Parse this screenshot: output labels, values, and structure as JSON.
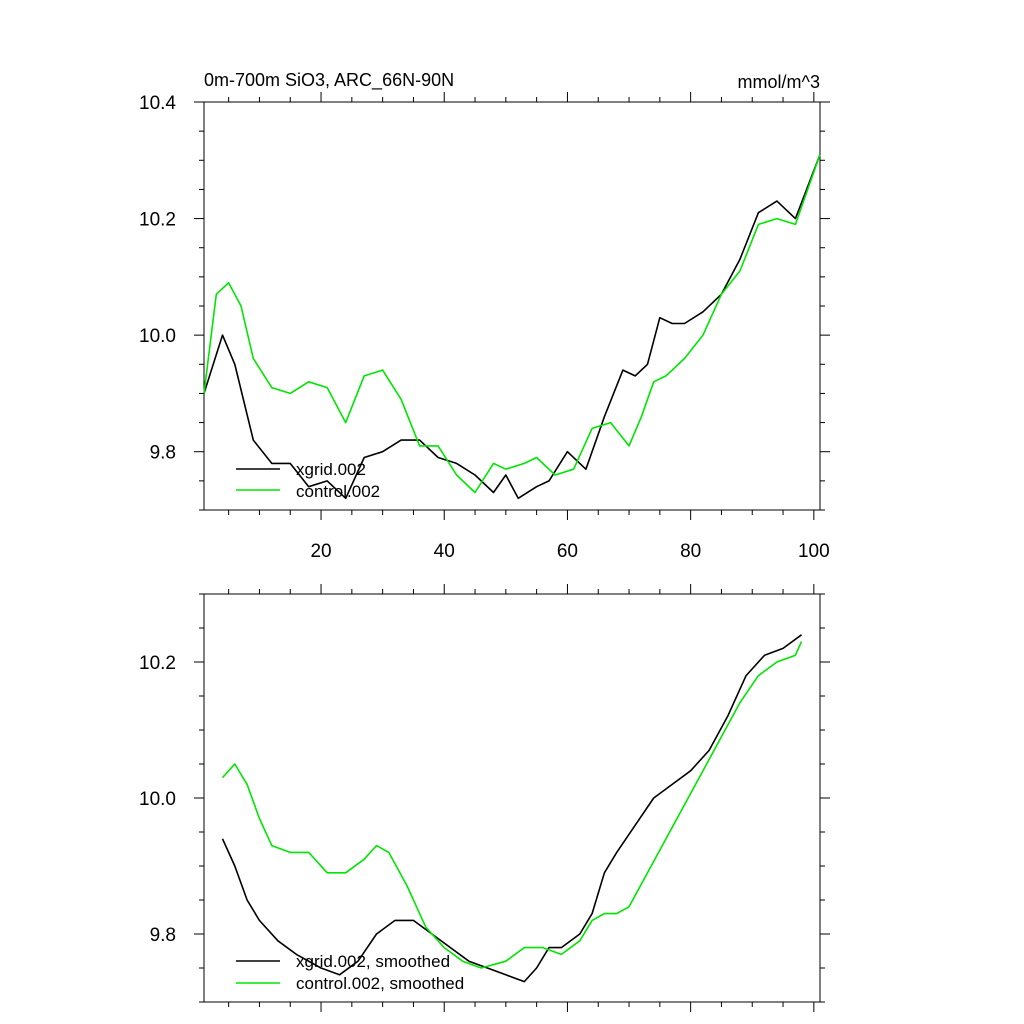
{
  "chart_data": [
    {
      "type": "line",
      "title": "0m-700m SiO3, ARC_66N-90N",
      "units": "mmol/m^3",
      "xlim": [
        1,
        101
      ],
      "ylim": [
        9.7,
        10.4
      ],
      "xticks": [
        {
          "v": 20,
          "label": "20"
        },
        {
          "v": 40,
          "label": "40"
        },
        {
          "v": 60,
          "label": "60"
        },
        {
          "v": 80,
          "label": "80"
        },
        {
          "v": 100,
          "label": "100"
        }
      ],
      "yticks": [
        {
          "v": 9.8,
          "label": "9.8"
        },
        {
          "v": 10.0,
          "label": "10.0"
        },
        {
          "v": 10.2,
          "label": "10.2"
        },
        {
          "v": 10.4,
          "label": "10.4"
        }
      ],
      "legend_position": "bottom-left",
      "series": [
        {
          "name": "xgrid.002",
          "color": "#000000",
          "x": [
            1,
            4,
            6,
            9,
            12,
            15,
            18,
            21,
            24,
            27,
            30,
            33,
            36,
            39,
            42,
            45,
            48,
            50,
            52,
            55,
            57,
            60,
            63,
            66,
            69,
            71,
            73,
            75,
            77,
            79,
            82,
            85,
            88,
            91,
            94,
            97,
            101
          ],
          "y": [
            9.9,
            10.0,
            9.95,
            9.82,
            9.78,
            9.78,
            9.74,
            9.75,
            9.72,
            9.79,
            9.8,
            9.82,
            9.82,
            9.79,
            9.78,
            9.76,
            9.73,
            9.76,
            9.72,
            9.74,
            9.75,
            9.8,
            9.77,
            9.86,
            9.94,
            9.93,
            9.95,
            10.03,
            10.02,
            10.02,
            10.04,
            10.07,
            10.13,
            10.21,
            10.23,
            10.2,
            10.31
          ]
        },
        {
          "name": "control.002",
          "color": "#00e600",
          "x": [
            1,
            3,
            5,
            7,
            9,
            12,
            15,
            18,
            21,
            24,
            27,
            30,
            33,
            36,
            39,
            42,
            45,
            48,
            50,
            53,
            55,
            58,
            61,
            64,
            67,
            70,
            72,
            74,
            76,
            79,
            82,
            85,
            88,
            91,
            94,
            97,
            101
          ],
          "y": [
            9.9,
            10.07,
            10.09,
            10.05,
            9.96,
            9.91,
            9.9,
            9.92,
            9.91,
            9.85,
            9.93,
            9.94,
            9.89,
            9.81,
            9.81,
            9.76,
            9.73,
            9.78,
            9.77,
            9.78,
            9.79,
            9.76,
            9.77,
            9.84,
            9.85,
            9.81,
            9.86,
            9.92,
            9.93,
            9.96,
            10.0,
            10.07,
            10.11,
            10.19,
            10.2,
            10.19,
            10.31
          ]
        }
      ]
    },
    {
      "type": "line",
      "xlim": [
        1,
        101
      ],
      "ylim": [
        9.7,
        10.3
      ],
      "yticks": [
        {
          "v": 9.8,
          "label": "9.8"
        },
        {
          "v": 10.0,
          "label": "10.0"
        },
        {
          "v": 10.2,
          "label": "10.2"
        }
      ],
      "legend_position": "bottom-left",
      "series": [
        {
          "name": "xgrid.002, smoothed",
          "color": "#000000",
          "x": [
            4,
            6,
            8,
            10,
            13,
            16,
            20,
            23,
            26,
            29,
            32,
            35,
            38,
            41,
            44,
            47,
            50,
            53,
            55,
            57,
            59,
            62,
            64,
            66,
            68,
            71,
            74,
            77,
            80,
            83,
            86,
            89,
            92,
            95,
            98
          ],
          "y": [
            9.94,
            9.9,
            9.85,
            9.82,
            9.79,
            9.77,
            9.75,
            9.74,
            9.76,
            9.8,
            9.82,
            9.82,
            9.8,
            9.78,
            9.76,
            9.75,
            9.74,
            9.73,
            9.75,
            9.78,
            9.78,
            9.8,
            9.83,
            9.89,
            9.92,
            9.96,
            10.0,
            10.02,
            10.04,
            10.07,
            10.12,
            10.18,
            10.21,
            10.22,
            10.24
          ]
        },
        {
          "name": "control.002, smoothed",
          "color": "#00e600",
          "x": [
            4,
            5,
            6,
            8,
            10,
            12,
            15,
            18,
            21,
            24,
            27,
            29,
            31,
            34,
            37,
            40,
            43,
            46,
            50,
            53,
            56,
            59,
            62,
            64,
            66,
            68,
            70,
            73,
            76,
            79,
            82,
            85,
            88,
            91,
            94,
            97,
            98
          ],
          "y": [
            10.03,
            10.04,
            10.05,
            10.02,
            9.97,
            9.93,
            9.92,
            9.92,
            9.89,
            9.89,
            9.91,
            9.93,
            9.92,
            9.87,
            9.81,
            9.78,
            9.76,
            9.75,
            9.76,
            9.78,
            9.78,
            9.77,
            9.79,
            9.82,
            9.83,
            9.83,
            9.84,
            9.89,
            9.94,
            9.99,
            10.04,
            10.09,
            10.14,
            10.18,
            10.2,
            10.21,
            10.23
          ]
        }
      ]
    }
  ]
}
